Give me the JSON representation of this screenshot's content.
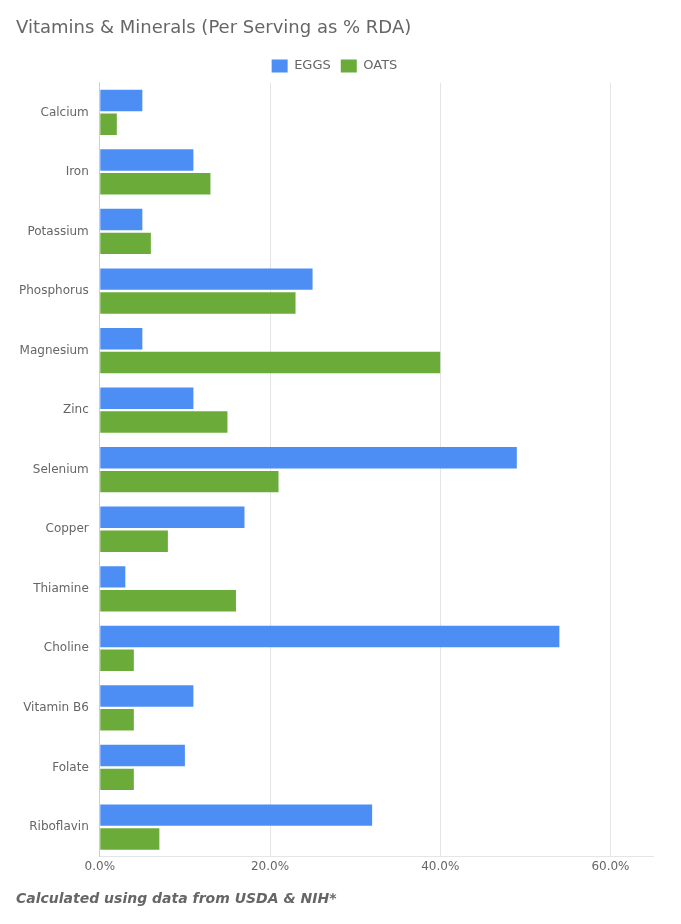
{
  "chart_data": {
    "type": "bar",
    "orientation": "horizontal",
    "title": "Vitamins & Minerals (Per Serving as % RDA)",
    "subtitle": "Calculated using data from USDA & NIH*",
    "categories": [
      "Calcium",
      "Iron",
      "Potassium",
      "Phosphorus",
      "Magnesium",
      "Zinc",
      "Selenium",
      "Copper",
      "Thiamine",
      "Choline",
      "Vitamin B6",
      "Folate",
      "Riboflavin"
    ],
    "series": [
      {
        "name": "EGGS",
        "color": "#4D8EF5",
        "values": [
          5.0,
          11.0,
          5.0,
          25.0,
          5.0,
          11.0,
          49.0,
          17.0,
          3.0,
          54.0,
          11.0,
          10.0,
          32.0
        ]
      },
      {
        "name": "OATS",
        "color": "#6AAB3A",
        "values": [
          2.0,
          13.0,
          6.0,
          23.0,
          40.0,
          15.0,
          21.0,
          8.0,
          16.0,
          4.0,
          4.0,
          4.0,
          7.0
        ]
      }
    ],
    "xlim": [
      0,
      65
    ],
    "xticks": [
      {
        "value": 0,
        "label": "0.0%"
      },
      {
        "value": 20,
        "label": "20.0%"
      },
      {
        "value": 40,
        "label": "40.0%"
      },
      {
        "value": 60,
        "label": "60.0%"
      }
    ],
    "grid": true,
    "legend": "top"
  }
}
